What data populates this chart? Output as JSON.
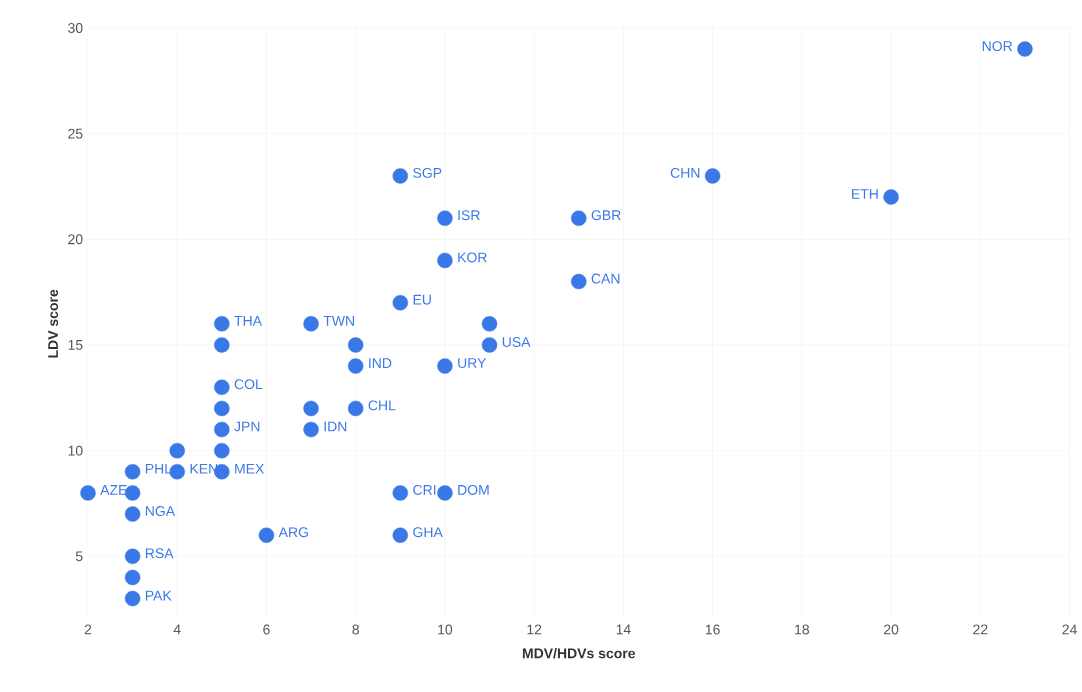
{
  "chart_data": {
    "type": "scatter",
    "xlabel": "MDV/HDVs score",
    "ylabel": "LDV score",
    "xlim": [
      2,
      24
    ],
    "xticks": [
      2,
      4,
      6,
      8,
      10,
      12,
      14,
      16,
      18,
      20,
      22,
      24
    ],
    "ylim": [
      2,
      30
    ],
    "yticks": [
      5,
      10,
      15,
      20,
      25,
      30
    ],
    "grid": true,
    "marker": "circle",
    "series": [
      {
        "color": "#3b78e7",
        "x": [
          23,
          16,
          20,
          9,
          10,
          13,
          10,
          13,
          9,
          5,
          7,
          11,
          5,
          8,
          11,
          8,
          10,
          5,
          5,
          7,
          8,
          5,
          7,
          4,
          5,
          3,
          4,
          5,
          2,
          3,
          9,
          10,
          3,
          6,
          9,
          3,
          3,
          3
        ],
        "values": [
          29,
          23,
          22,
          23,
          21,
          21,
          19,
          18,
          17,
          16,
          16,
          16,
          15,
          15,
          15,
          14,
          14,
          13,
          12,
          12,
          12,
          11,
          11,
          10,
          10,
          9,
          9,
          9,
          8,
          8,
          8,
          8,
          7,
          6,
          6,
          5,
          4,
          3
        ]
      }
    ],
    "annotations": [
      {
        "text": "NOR",
        "x": 23,
        "y": 29
      },
      {
        "text": "CHN",
        "x": 16,
        "y": 23
      },
      {
        "text": "ETH",
        "x": 20,
        "y": 22
      },
      {
        "text": "SGP",
        "x": 9,
        "y": 23
      },
      {
        "text": "ISR",
        "x": 10,
        "y": 21
      },
      {
        "text": "GBR",
        "x": 13,
        "y": 21
      },
      {
        "text": "KOR",
        "x": 10,
        "y": 19
      },
      {
        "text": "CAN",
        "x": 13,
        "y": 18
      },
      {
        "text": "EU",
        "x": 9,
        "y": 17
      },
      {
        "text": "THA",
        "x": 5,
        "y": 16
      },
      {
        "text": "TWN",
        "x": 7,
        "y": 16
      },
      {
        "text": "USA",
        "x": 11,
        "y": 15
      },
      {
        "text": "IND",
        "x": 8,
        "y": 14
      },
      {
        "text": "URY",
        "x": 10,
        "y": 14
      },
      {
        "text": "COL",
        "x": 5,
        "y": 13
      },
      {
        "text": "CHL",
        "x": 8,
        "y": 12
      },
      {
        "text": "JPN",
        "x": 5,
        "y": 11
      },
      {
        "text": "IDN",
        "x": 7,
        "y": 11
      },
      {
        "text": "PHL",
        "x": 3,
        "y": 9
      },
      {
        "text": "KEN",
        "x": 4,
        "y": 9
      },
      {
        "text": "MEX",
        "x": 5,
        "y": 9
      },
      {
        "text": "AZE",
        "x": 2,
        "y": 8
      },
      {
        "text": "CRI",
        "x": 9,
        "y": 8
      },
      {
        "text": "DOM",
        "x": 10,
        "y": 8
      },
      {
        "text": "NGA",
        "x": 3,
        "y": 7
      },
      {
        "text": "ARG",
        "x": 6,
        "y": 6
      },
      {
        "text": "GHA",
        "x": 9,
        "y": 6
      },
      {
        "text": "RSA",
        "x": 3,
        "y": 5
      },
      {
        "text": "PAK",
        "x": 3,
        "y": 3
      }
    ]
  }
}
